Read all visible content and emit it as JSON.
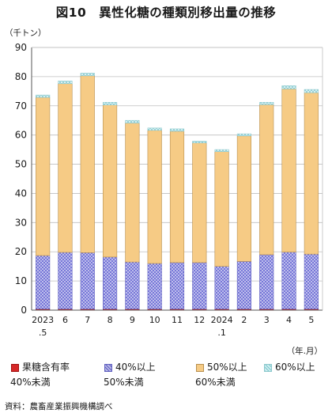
{
  "title": "図10　異性化糖の種類別移出量の推移",
  "unit_label": "（千トン）",
  "x_unit_label": "（年.月）",
  "source": "資料：農畜産業振興機構調べ",
  "colors": {
    "fructose_40": "#d62828",
    "fructose_40_50": "#b8b8e8",
    "fructose_50_60": "#f6cb85",
    "fructose_60": "#cfeef0"
  },
  "legend": [
    {
      "line1": "果糖含有率",
      "line2": "40%未満",
      "series": 0
    },
    {
      "line1": "40%以上",
      "line2": "50%未満",
      "series": 1
    },
    {
      "line1": "50%以上",
      "line2": "60%未満",
      "series": 2
    },
    {
      "line1": "60%以上",
      "line2": "",
      "series": 3
    }
  ],
  "chart_data": {
    "type": "bar",
    "stacked": true,
    "categories": [
      "2023\n.5",
      "6",
      "7",
      "8",
      "9",
      "10",
      "11",
      "12",
      "2024\n.1",
      "2",
      "3",
      "4",
      "5"
    ],
    "series": [
      {
        "name": "果糖含有率 40%未満",
        "values": [
          0.4,
          0.4,
          0.4,
          0.4,
          0.4,
          0.4,
          0.4,
          0.4,
          0.4,
          0.4,
          0.4,
          0.4,
          0.4
        ]
      },
      {
        "name": "40%以上 50%未満",
        "values": [
          18.3,
          19.4,
          19.3,
          17.8,
          16.1,
          15.6,
          15.9,
          15.9,
          14.6,
          16.3,
          18.6,
          19.5,
          18.8
        ]
      },
      {
        "name": "50%以上 60%未満",
        "values": [
          54.2,
          57.8,
          60.6,
          52.1,
          47.6,
          45.6,
          45.0,
          41.0,
          39.3,
          43.0,
          51.4,
          55.9,
          55.3
        ]
      },
      {
        "name": "60%以上",
        "values": [
          0.8,
          0.9,
          0.9,
          0.9,
          0.9,
          0.8,
          0.8,
          0.6,
          0.7,
          0.7,
          0.8,
          1.1,
          1.1
        ]
      }
    ],
    "ylim": [
      0,
      90
    ],
    "yticks": [
      0,
      10,
      20,
      30,
      40,
      50,
      60,
      70,
      80,
      90
    ],
    "grid": true
  }
}
